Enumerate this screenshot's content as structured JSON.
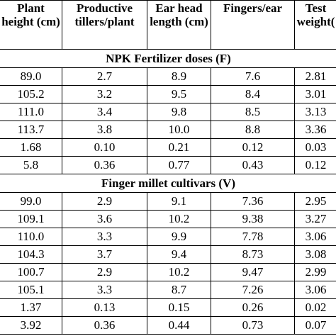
{
  "table": {
    "header": [
      "Plant height (cm)",
      "Productive tillers/plant",
      "Ear head length (cm)",
      "Fingers/ear",
      "Test weight("
    ],
    "sections": [
      {
        "title": "NPK Fertilizer doses (F)",
        "rows": [
          [
            "89.0",
            "2.7",
            "8.9",
            "7.6",
            "2.81"
          ],
          [
            "105.2",
            "3.2",
            "9.5",
            "8.4",
            "3.01"
          ],
          [
            "111.0",
            "3.4",
            "9.8",
            "8.5",
            "3.13"
          ],
          [
            "113.7",
            "3.8",
            "10.0",
            "8.8",
            "3.36"
          ],
          [
            "1.68",
            "0.10",
            "0.21",
            "0.12",
            "0.03"
          ],
          [
            "5.8",
            "0.36",
            "0.77",
            "0.43",
            "0.12"
          ]
        ]
      },
      {
        "title": "Finger millet cultivars (V)",
        "rows": [
          [
            "99.0",
            "2.9",
            "9.1",
            "7.36",
            "2.95"
          ],
          [
            "109.1",
            "3.6",
            "10.2",
            "9.38",
            "3.27"
          ],
          [
            "110.0",
            "3.3",
            "9.9",
            "7.78",
            "3.06"
          ],
          [
            "104.3",
            "3.7",
            "9.4",
            "8.73",
            "3.08"
          ],
          [
            "100.7",
            "2.9",
            "10.2",
            "9.47",
            "2.99"
          ],
          [
            "105.1",
            "3.3",
            "8.7",
            "7.26",
            "3.06"
          ],
          [
            "1.37",
            "0.13",
            "0.15",
            "0.26",
            "0.02"
          ],
          [
            "3.92",
            "0.36",
            "0.44",
            "0.73",
            "0.07"
          ]
        ]
      }
    ]
  }
}
